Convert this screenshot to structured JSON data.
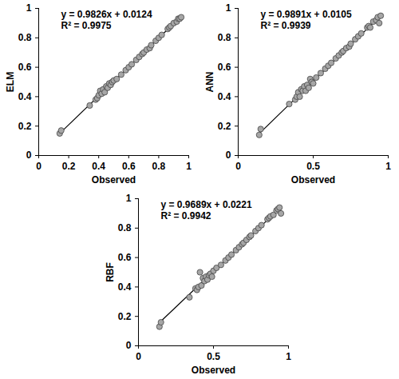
{
  "chart_data": [
    {
      "type": "scatter",
      "x_label": "Observed",
      "y_label": "ELM",
      "color": "#a6a6a6",
      "marker": "circle",
      "annotations": [
        "y = 0.9826x + 0.0124",
        "R² = 0.9975"
      ],
      "trendline": {
        "slope": 0.9826,
        "intercept": 0.0124
      },
      "xlim": [
        0,
        1
      ],
      "ylim": [
        0,
        1
      ],
      "xticks": [
        0,
        0.2,
        0.4,
        0.6,
        0.8,
        1
      ],
      "yticks": [
        0,
        0.2,
        0.4,
        0.6,
        0.8,
        1
      ],
      "x": [
        0.14,
        0.15,
        0.34,
        0.38,
        0.39,
        0.4,
        0.41,
        0.42,
        0.43,
        0.44,
        0.45,
        0.46,
        0.47,
        0.48,
        0.49,
        0.5,
        0.52,
        0.55,
        0.58,
        0.6,
        0.62,
        0.65,
        0.67,
        0.69,
        0.7,
        0.72,
        0.74,
        0.75,
        0.78,
        0.8,
        0.82,
        0.86,
        0.87,
        0.88,
        0.9,
        0.92,
        0.93,
        0.94,
        0.95
      ],
      "values": [
        0.15,
        0.17,
        0.34,
        0.38,
        0.39,
        0.41,
        0.44,
        0.42,
        0.45,
        0.43,
        0.47,
        0.46,
        0.49,
        0.48,
        0.5,
        0.51,
        0.52,
        0.55,
        0.58,
        0.6,
        0.62,
        0.65,
        0.67,
        0.69,
        0.7,
        0.72,
        0.73,
        0.75,
        0.78,
        0.8,
        0.82,
        0.86,
        0.87,
        0.88,
        0.9,
        0.91,
        0.93,
        0.93,
        0.94
      ]
    },
    {
      "type": "scatter",
      "x_label": "Observed",
      "y_label": "ANN",
      "color": "#a6a6a6",
      "marker": "circle",
      "annotations": [
        "y = 0.9891x + 0.0105",
        "R² = 0.9939"
      ],
      "trendline": {
        "slope": 0.9891,
        "intercept": 0.0105
      },
      "xlim": [
        0,
        1
      ],
      "ylim": [
        0,
        1
      ],
      "xticks": [
        0,
        0.5,
        1
      ],
      "yticks": [
        0,
        0.2,
        0.4,
        0.6,
        0.8,
        1
      ],
      "x": [
        0.14,
        0.15,
        0.34,
        0.38,
        0.39,
        0.4,
        0.41,
        0.42,
        0.43,
        0.44,
        0.45,
        0.46,
        0.47,
        0.48,
        0.49,
        0.5,
        0.52,
        0.55,
        0.58,
        0.6,
        0.62,
        0.65,
        0.67,
        0.69,
        0.7,
        0.72,
        0.74,
        0.75,
        0.78,
        0.8,
        0.82,
        0.86,
        0.87,
        0.88,
        0.9,
        0.92,
        0.93,
        0.94,
        0.95
      ],
      "values": [
        0.14,
        0.18,
        0.35,
        0.38,
        0.4,
        0.43,
        0.4,
        0.45,
        0.44,
        0.47,
        0.44,
        0.48,
        0.46,
        0.52,
        0.5,
        0.49,
        0.53,
        0.56,
        0.59,
        0.61,
        0.63,
        0.66,
        0.68,
        0.7,
        0.71,
        0.73,
        0.74,
        0.76,
        0.79,
        0.81,
        0.83,
        0.87,
        0.88,
        0.87,
        0.91,
        0.92,
        0.94,
        0.9,
        0.95
      ]
    },
    {
      "type": "scatter",
      "x_label": "Observed",
      "y_label": "RBF",
      "color": "#a6a6a6",
      "marker": "circle",
      "annotations": [
        "y = 0.9689x + 0.0221",
        "R² = 0.9942"
      ],
      "trendline": {
        "slope": 0.9689,
        "intercept": 0.0221
      },
      "xlim": [
        0,
        1
      ],
      "ylim": [
        0,
        1
      ],
      "xticks": [
        0,
        0.5,
        1
      ],
      "yticks": [
        0,
        0.2,
        0.4,
        0.6,
        0.8,
        1
      ],
      "x": [
        0.14,
        0.15,
        0.34,
        0.38,
        0.39,
        0.4,
        0.41,
        0.42,
        0.43,
        0.44,
        0.45,
        0.46,
        0.47,
        0.48,
        0.49,
        0.5,
        0.52,
        0.55,
        0.58,
        0.6,
        0.62,
        0.65,
        0.67,
        0.69,
        0.7,
        0.72,
        0.74,
        0.75,
        0.78,
        0.8,
        0.82,
        0.86,
        0.87,
        0.88,
        0.9,
        0.92,
        0.93,
        0.94,
        0.95
      ],
      "values": [
        0.13,
        0.16,
        0.33,
        0.39,
        0.38,
        0.4,
        0.5,
        0.41,
        0.46,
        0.44,
        0.47,
        0.45,
        0.48,
        0.49,
        0.47,
        0.51,
        0.53,
        0.55,
        0.58,
        0.6,
        0.62,
        0.65,
        0.67,
        0.69,
        0.7,
        0.72,
        0.74,
        0.75,
        0.78,
        0.8,
        0.82,
        0.86,
        0.87,
        0.88,
        0.89,
        0.92,
        0.93,
        0.94,
        0.9
      ]
    }
  ]
}
